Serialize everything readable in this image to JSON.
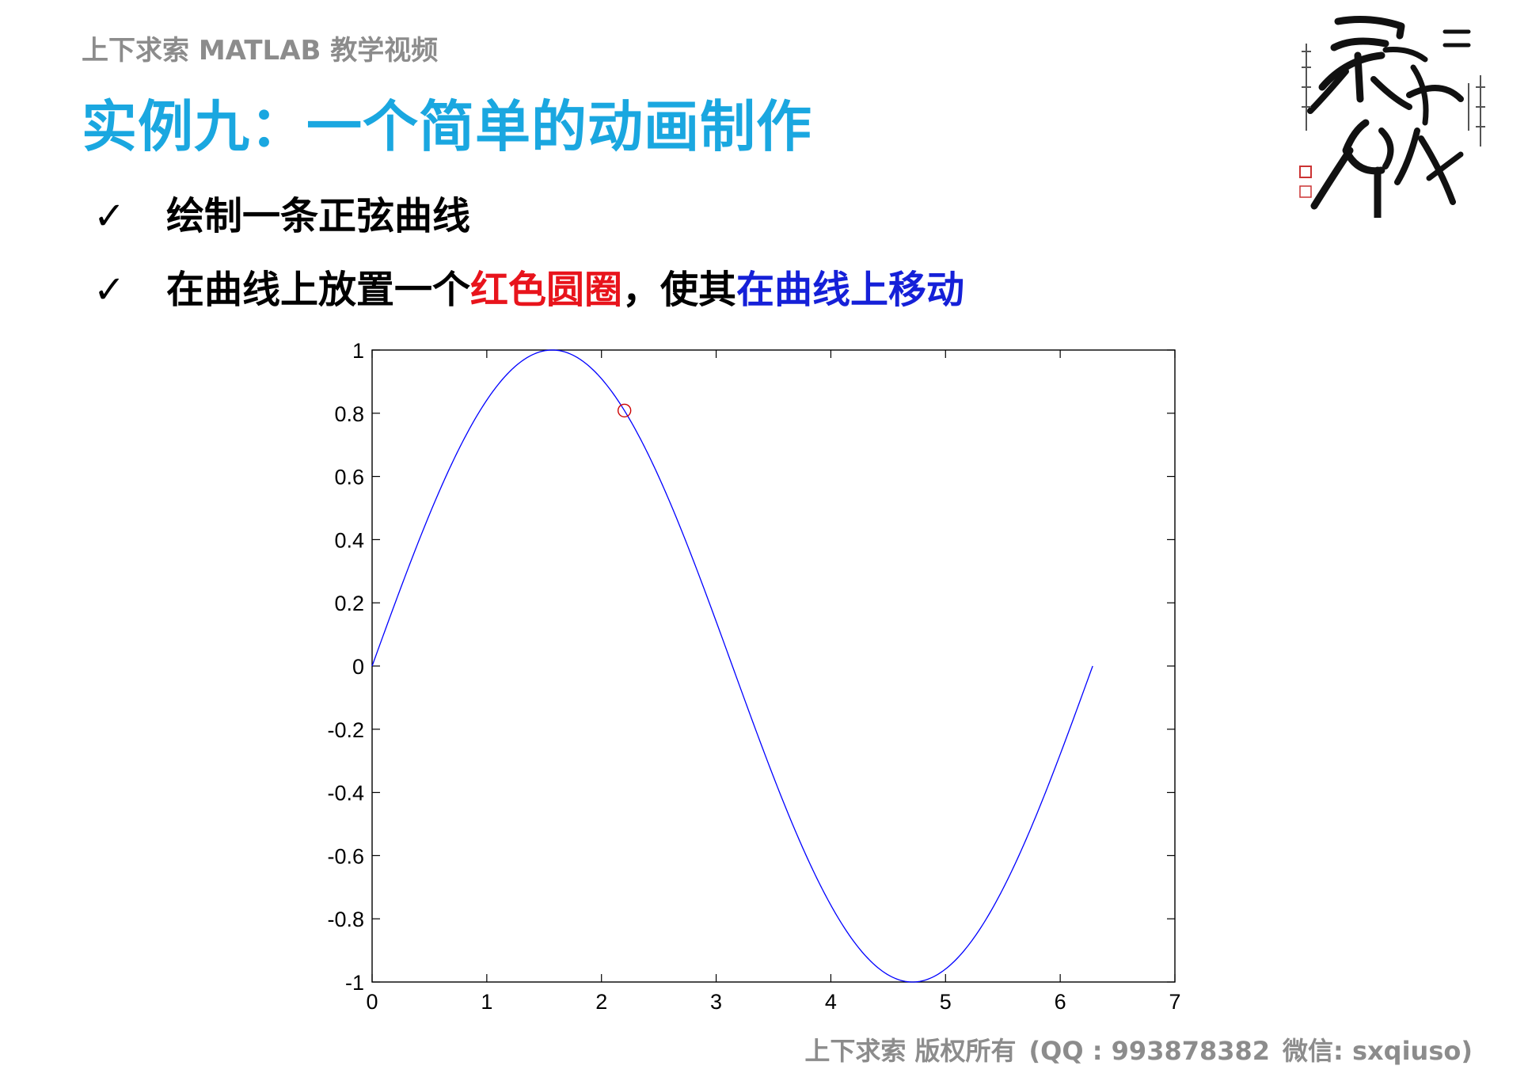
{
  "header": {
    "caption": "上下求索 MATLAB 教学视频",
    "title": "实例九：一个简单的动画制作"
  },
  "bullets": [
    {
      "check": "✓",
      "text": "绘制一条正弦曲线"
    },
    {
      "check": "✓",
      "segments": [
        {
          "text": "在曲线上放置一个",
          "color": "#000000"
        },
        {
          "text": "红色圆圈",
          "color": "#e8141c"
        },
        {
          "text": "，使其",
          "color": "#000000"
        },
        {
          "text": "在曲线上移动",
          "color": "#1520d8"
        }
      ]
    }
  ],
  "footer": {
    "copyright": "上下求索 版权所有",
    "contact": "(QQ : 993878382",
    "wechat": "微信: sxqiuso)"
  },
  "chart_data": {
    "type": "line",
    "title": "",
    "xlabel": "",
    "ylabel": "",
    "xlim": [
      0,
      7
    ],
    "ylim": [
      -1,
      1
    ],
    "xticks": [
      0,
      1,
      2,
      3,
      4,
      5,
      6,
      7
    ],
    "yticks": [
      1,
      0.8,
      0.6,
      0.4,
      0.2,
      0,
      -0.2,
      -0.4,
      -0.6,
      -0.8,
      -1
    ],
    "ytick_labels": [
      "1",
      "0.8",
      "0.6",
      "0.4",
      "0.2",
      "0",
      "-0.2",
      "-0.4",
      "-0.6",
      "-0.8",
      "-1"
    ],
    "grid": false,
    "series": [
      {
        "function": "sin(x)",
        "x_range": [
          0,
          6.2832
        ],
        "color": "#0000ff"
      }
    ],
    "marker": {
      "x": 2.2,
      "y": 0.8085,
      "shape": "circle-open",
      "color": "#cc0000"
    }
  }
}
